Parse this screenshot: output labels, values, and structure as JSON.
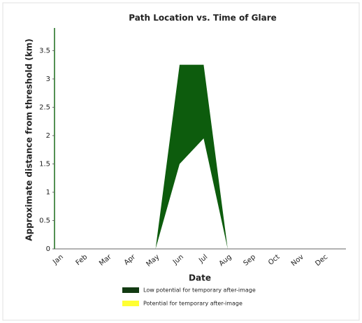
{
  "chart_data": {
    "type": "area",
    "title": "Path Location vs. Time of Glare",
    "y_label": "Approximate distance from threshold (km)",
    "x_label": "Date",
    "categories": [
      "Jan",
      "Feb",
      "Mar",
      "Apr",
      "May",
      "Jun",
      "Jul",
      "Aug",
      "Sep",
      "Oct",
      "Nov",
      "Dec"
    ],
    "band": {
      "upper": [
        0,
        0,
        0,
        0,
        0,
        3.25,
        3.25,
        0,
        0,
        0,
        0,
        0
      ],
      "lower": [
        0,
        0,
        0,
        0,
        0,
        1.5,
        1.95,
        0,
        0,
        0,
        0,
        0
      ]
    },
    "color": "#0d5c0d",
    "ylim": [
      0,
      3.9
    ],
    "yticks": [
      0,
      0.5,
      1,
      1.5,
      2,
      2.5,
      3,
      3.5
    ],
    "legend": [
      {
        "name": "Low potential for temporary after-image",
        "color": "#123a12"
      },
      {
        "name": "Potential for temporary after-image",
        "color": "#ffff33"
      }
    ]
  }
}
